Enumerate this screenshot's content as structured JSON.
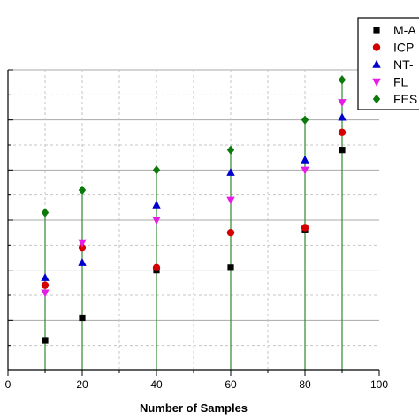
{
  "chart_data": {
    "type": "scatter",
    "title": "",
    "xlabel": "Number of Samples",
    "ylabel": "",
    "xlim": [
      0,
      100
    ],
    "ylim": [
      0,
      12
    ],
    "x_ticks": [
      "0",
      "20",
      "40",
      "60",
      "80",
      "100"
    ],
    "grid": true,
    "legend_position": "top-right",
    "x": [
      10,
      20,
      40,
      60,
      80,
      90
    ],
    "series": [
      {
        "name": "M-A",
        "marker": "square",
        "color": "#000000",
        "values": [
          1.2,
          2.1,
          4.0,
          4.1,
          5.6,
          8.8
        ]
      },
      {
        "name": "ICP",
        "marker": "circle",
        "color": "#d40000",
        "values": [
          3.4,
          4.9,
          4.1,
          5.5,
          5.7,
          9.5
        ]
      },
      {
        "name": "NT-",
        "marker": "triangle-up",
        "color": "#0000cc",
        "values": [
          3.7,
          4.3,
          6.6,
          7.9,
          8.4,
          10.1
        ]
      },
      {
        "name": "FL",
        "marker": "triangle-down",
        "color": "#e61be6",
        "values": [
          3.1,
          5.1,
          6.0,
          6.8,
          8.0,
          10.7
        ]
      },
      {
        "name": "FES",
        "marker": "diamond",
        "color": "#0b7a0b",
        "values": [
          6.3,
          7.2,
          8.0,
          8.8,
          10.0,
          11.6
        ]
      }
    ]
  }
}
